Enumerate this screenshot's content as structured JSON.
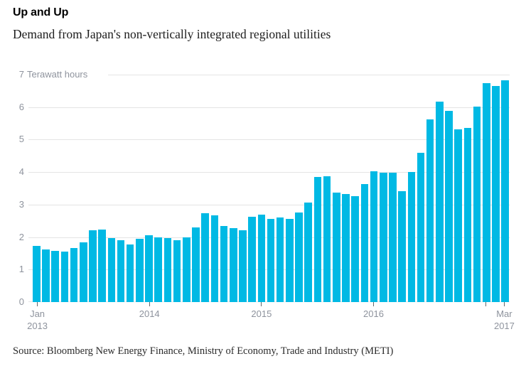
{
  "header": {
    "title": "Up and Up",
    "subtitle": "Demand from Japan's non-vertically integrated regional utilities"
  },
  "source": {
    "text": "Source: Bloomberg New Energy Finance, Ministry of Economy, Trade and Industry (METI)"
  },
  "colors": {
    "bar": "#00b9e4",
    "gridline": "#e4e4e4",
    "axis_label": "#8e939d",
    "tick": "#63666a",
    "title": "#000000",
    "subtitle": "#1d1d1d",
    "source": "#2b2b2b"
  },
  "chart_data": {
    "type": "bar",
    "title": "Up and Up",
    "subtitle": "Demand from Japan's non-vertically integrated regional utilities",
    "unit_label": "Terawatt hours",
    "ylabel": "Terawatt hours",
    "xlabel": "",
    "ylim": [
      0,
      7
    ],
    "yticks": [
      0,
      1,
      2,
      3,
      4,
      5,
      6,
      7
    ],
    "grid": "horizontal",
    "legend": "none",
    "x": [
      "2013-01",
      "2013-02",
      "2013-03",
      "2013-04",
      "2013-05",
      "2013-06",
      "2013-07",
      "2013-08",
      "2013-09",
      "2013-10",
      "2013-11",
      "2013-12",
      "2014-01",
      "2014-02",
      "2014-03",
      "2014-04",
      "2014-05",
      "2014-06",
      "2014-07",
      "2014-08",
      "2014-09",
      "2014-10",
      "2014-11",
      "2014-12",
      "2015-01",
      "2015-02",
      "2015-03",
      "2015-04",
      "2015-05",
      "2015-06",
      "2015-07",
      "2015-08",
      "2015-09",
      "2015-10",
      "2015-11",
      "2015-12",
      "2016-01",
      "2016-02",
      "2016-03",
      "2016-04",
      "2016-05",
      "2016-06",
      "2016-07",
      "2016-08",
      "2016-09",
      "2016-10",
      "2016-11",
      "2016-12",
      "2017-01",
      "2017-02",
      "2017-03"
    ],
    "values": [
      1.72,
      1.62,
      1.58,
      1.55,
      1.66,
      1.84,
      2.2,
      2.24,
      1.97,
      1.9,
      1.77,
      1.95,
      2.05,
      1.99,
      1.96,
      1.91,
      2.0,
      2.3,
      2.73,
      2.66,
      2.34,
      2.28,
      2.21,
      2.62,
      2.69,
      2.55,
      2.6,
      2.56,
      2.76,
      3.06,
      3.84,
      3.88,
      3.36,
      3.33,
      3.26,
      3.64,
      4.03,
      3.99,
      3.99,
      3.41,
      4.01,
      4.6,
      5.62,
      6.18,
      5.89,
      5.32,
      5.37,
      6.02,
      6.74,
      6.64,
      6.83
    ],
    "xticks": [
      {
        "month_index": 0,
        "label_lines": [
          "Jan",
          "2013"
        ]
      },
      {
        "month_index": 12,
        "label_lines": [
          "2014"
        ]
      },
      {
        "month_index": 24,
        "label_lines": [
          "2015"
        ]
      },
      {
        "month_index": 36,
        "label_lines": [
          "2016"
        ]
      },
      {
        "month_index": 48,
        "label_lines": []
      },
      {
        "month_index": 50,
        "label_lines": [
          "Mar",
          "2017"
        ]
      }
    ]
  }
}
